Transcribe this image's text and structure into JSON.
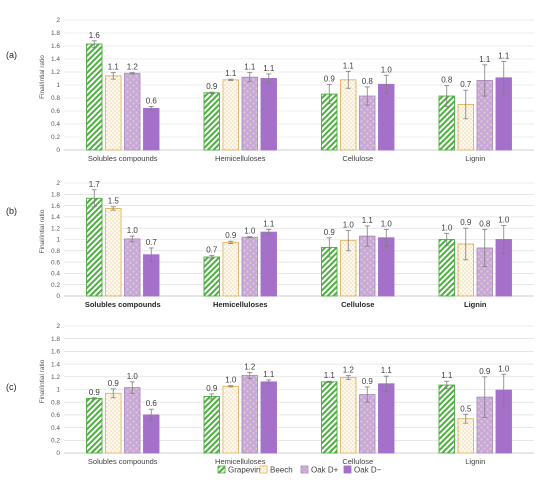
{
  "colors": {
    "grapevine": "#4caf3f",
    "beech": "#e3b35a",
    "oak_d_plus": "#b08bc7",
    "oak_d_minus": "#a470c9",
    "grid": "#d9d9d9",
    "axis": "#bfbfbf",
    "error_bar": "#7f7f7f"
  },
  "legend": {
    "position": "bottom-right",
    "items": [
      {
        "name": "Grapevine",
        "pattern": "diagonal-hatch",
        "color": "#4caf3f"
      },
      {
        "name": "Beech",
        "pattern": "light-dots",
        "color": "#e3b35a"
      },
      {
        "name": "Oak D+",
        "pattern": "large-dots",
        "color": "#b08bc7"
      },
      {
        "name": "Oak D−",
        "pattern": "solid",
        "color": "#a470c9"
      }
    ]
  },
  "chart_data": [
    {
      "type": "bar",
      "panel_label": "(a)",
      "ylabel": "Final/intial ratio",
      "ylim": [
        0,
        2
      ],
      "yticks": [
        "0",
        "0.2",
        "0.4",
        "0.6",
        "0.8",
        "1",
        "1.2",
        "1.4",
        "1.6",
        "1.8",
        "2"
      ],
      "grid": true,
      "categories": [
        "Solubles compounds",
        "Hemicelluloses",
        "Cellulose",
        "Lignin"
      ],
      "category_label_bold": false,
      "series": [
        {
          "name": "Grapevine",
          "values": [
            1.63,
            0.88,
            0.86,
            0.83
          ],
          "errors": [
            0.05,
            0.01,
            0.15,
            0.16
          ],
          "labels": [
            "1.6",
            "0.9",
            "0.9",
            "0.8"
          ]
        },
        {
          "name": "Beech",
          "values": [
            1.14,
            1.08,
            1.08,
            0.7
          ],
          "errors": [
            0.05,
            0.01,
            0.13,
            0.22
          ],
          "labels": [
            "1.1",
            "1.1",
            "1.1",
            "0.7"
          ]
        },
        {
          "name": "Oak D+",
          "values": [
            1.18,
            1.12,
            0.83,
            1.07
          ],
          "errors": [
            0.01,
            0.07,
            0.14,
            0.24
          ],
          "labels": [
            "1.2",
            "1.1",
            "0.8",
            "1.1"
          ]
        },
        {
          "name": "Oak D−",
          "values": [
            0.64,
            1.1,
            1.01,
            1.11
          ],
          "errors": [
            0.03,
            0.07,
            0.14,
            0.25
          ],
          "labels": [
            "0.6",
            "1.1",
            "1.0",
            "1.1"
          ]
        }
      ]
    },
    {
      "type": "bar",
      "panel_label": "(b)",
      "ylabel": "Final/intial ratio",
      "ylim": [
        0,
        2
      ],
      "yticks": [
        "0",
        "0.2",
        "0.4",
        "0.6",
        "0.8",
        "1",
        "1.2",
        "1.4",
        "1.6",
        "1.8",
        "2"
      ],
      "grid": true,
      "categories": [
        "Solubles compounds",
        "Hemicelluloses",
        "Cellulose",
        "Lignin"
      ],
      "category_label_bold": true,
      "series": [
        {
          "name": "Grapevine",
          "values": [
            1.73,
            0.69,
            0.86,
            1.0
          ],
          "errors": [
            0.15,
            0.03,
            0.17,
            0.11
          ],
          "labels": [
            "1.7",
            "0.7",
            "0.9",
            "1.0"
          ]
        },
        {
          "name": "Beech",
          "values": [
            1.55,
            0.95,
            0.98,
            0.92
          ],
          "errors": [
            0.03,
            0.02,
            0.18,
            0.28
          ],
          "labels": [
            "1.5",
            "0.9",
            "1.0",
            "0.9"
          ]
        },
        {
          "name": "Oak D+",
          "values": [
            1.01,
            1.04,
            1.06,
            0.85
          ],
          "errors": [
            0.05,
            0.01,
            0.18,
            0.33
          ],
          "labels": [
            "1.0",
            "1.0",
            "1.1",
            "0.8"
          ]
        },
        {
          "name": "Oak D−",
          "values": [
            0.73,
            1.13,
            1.03,
            1.0
          ],
          "errors": [
            0.12,
            0.05,
            0.15,
            0.25
          ],
          "labels": [
            "0.7",
            "1.1",
            "1.0",
            "1.0"
          ]
        }
      ]
    },
    {
      "type": "bar",
      "panel_label": "(c)",
      "ylabel": "Final/intial ratio",
      "ylim": [
        0,
        2
      ],
      "yticks": [
        "0",
        "0.2",
        "0.4",
        "0.6",
        "0.8",
        "1",
        "1.2",
        "1.4",
        "1.6",
        "1.8",
        "2"
      ],
      "grid": true,
      "categories": [
        "Solubles compounds",
        "Hemicelluloses",
        "Cellulose",
        "Lignin"
      ],
      "category_label_bold": false,
      "series": [
        {
          "name": "Grapevine",
          "values": [
            0.86,
            0.89,
            1.12,
            1.07
          ],
          "errors": [
            0.01,
            0.04,
            0.01,
            0.06
          ],
          "labels": [
            "0.9",
            "0.9",
            "1.1",
            "1.1"
          ]
        },
        {
          "name": "Beech",
          "values": [
            0.94,
            1.05,
            1.19,
            0.54
          ],
          "errors": [
            0.07,
            0.01,
            0.03,
            0.07
          ],
          "labels": [
            "0.9",
            "1.0",
            "1.2",
            "0.5"
          ]
        },
        {
          "name": "Oak D+",
          "values": [
            1.03,
            1.22,
            0.92,
            0.88
          ],
          "errors": [
            0.09,
            0.05,
            0.12,
            0.32
          ],
          "labels": [
            "1.0",
            "1.2",
            "0.9",
            "0.9"
          ]
        },
        {
          "name": "Oak D−",
          "values": [
            0.6,
            1.12,
            1.09,
            0.99
          ],
          "errors": [
            0.09,
            0.03,
            0.12,
            0.25
          ],
          "labels": [
            "0.6",
            "1.1",
            "1.1",
            "1.0"
          ]
        }
      ]
    }
  ]
}
